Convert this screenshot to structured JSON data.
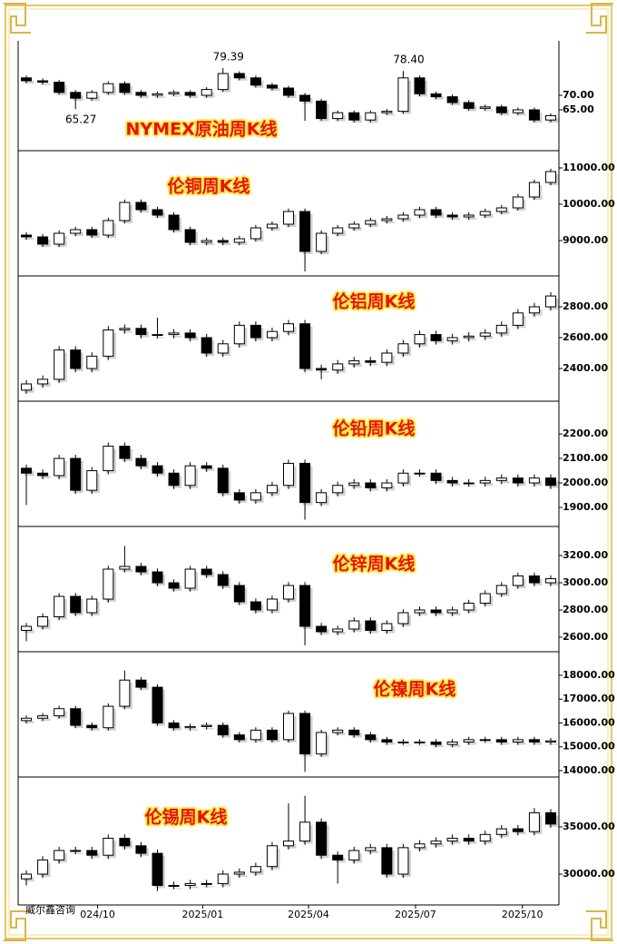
{
  "watermark": "威尔鑫咨询",
  "chart_data": [
    {
      "type": "candlestick",
      "title": "NYMEX原油周K线",
      "xlim": [
        -0.5,
        32.5
      ],
      "ylim": [
        51.25,
        88.75
      ],
      "yticks": [
        {
          "value": 65,
          "label": "65.00"
        },
        {
          "value": 70,
          "label": "70.00"
        }
      ],
      "annotations": [
        {
          "label": "65.27",
          "value": 65.27,
          "x": 3
        },
        {
          "label": "79.39",
          "value": 79.39,
          "x": 12
        },
        {
          "label": "78.40",
          "value": 78.4,
          "x": 23
        }
      ],
      "open": [
        76,
        75,
        74.5,
        71,
        69,
        71,
        74,
        71,
        70,
        70.5,
        71,
        70,
        72,
        77.5,
        76,
        73.5,
        72.5,
        70,
        68,
        62,
        64,
        61.5,
        64,
        64.5,
        76,
        70.5,
        69.5,
        67.5,
        65.5,
        66,
        64,
        65,
        61.5
      ],
      "high": [
        76.8,
        75.8,
        75.3,
        71.8,
        71.8,
        74.8,
        74.8,
        71.8,
        71.3,
        71.8,
        71.8,
        72.8,
        79.39,
        78.3,
        76.8,
        74.3,
        73.3,
        70.8,
        68.8,
        64.8,
        64.8,
        64.8,
        65.3,
        78.4,
        76.8,
        71.3,
        70.3,
        68.3,
        66.8,
        66.8,
        65.8,
        65.8,
        63.8
      ],
      "low": [
        74.2,
        73.7,
        70.2,
        65.27,
        68.2,
        70.2,
        70.2,
        69.2,
        69.2,
        69.7,
        69.2,
        69.2,
        71.2,
        75.2,
        72.7,
        71.7,
        69.2,
        61.2,
        61.2,
        61.2,
        60.7,
        60.7,
        63.2,
        63.7,
        69.7,
        68.7,
        66.7,
        64.7,
        64.7,
        63.2,
        63.2,
        60.7,
        60.7
      ],
      "close": [
        75,
        74.5,
        71,
        69,
        71,
        74,
        71,
        70,
        70.5,
        71,
        70,
        72,
        77.5,
        76,
        73.5,
        72.5,
        70,
        68,
        62,
        64,
        61.5,
        64,
        64.5,
        76,
        70.5,
        69.5,
        67.5,
        65.5,
        66,
        64,
        65,
        61.5,
        63
      ]
    },
    {
      "type": "candlestick",
      "title": "伦铜周K线",
      "xlim": [
        -0.5,
        32.5
      ],
      "ylim": [
        8050,
        11450
      ],
      "yticks": [
        {
          "value": 9000,
          "label": "9000.00"
        },
        {
          "value": 10000,
          "label": "10000.00"
        },
        {
          "value": 11000,
          "label": "11000.00"
        }
      ],
      "open": [
        9150,
        9100,
        8900,
        9200,
        9300,
        9150,
        9550,
        10050,
        9850,
        9700,
        9300,
        8950,
        9000,
        8950,
        9050,
        9350,
        9450,
        9800,
        8700,
        9200,
        9350,
        9450,
        9550,
        9600,
        9700,
        9850,
        9700,
        9650,
        9700,
        9800,
        9900,
        10200,
        10600
      ],
      "high": [
        9230,
        9180,
        9280,
        9380,
        9380,
        9630,
        10130,
        10130,
        9930,
        9780,
        9380,
        9080,
        9080,
        9130,
        9430,
        9530,
        9880,
        9880,
        9280,
        9430,
        9530,
        9630,
        9680,
        9780,
        9930,
        9930,
        9780,
        9780,
        9880,
        9980,
        10280,
        10680,
        10980
      ],
      "low": [
        9020,
        8820,
        8820,
        9120,
        9070,
        9070,
        9470,
        9770,
        9620,
        9220,
        8870,
        8870,
        8870,
        8870,
        8970,
        9270,
        9370,
        8150,
        8620,
        9120,
        9270,
        9370,
        9470,
        9520,
        9620,
        9620,
        9570,
        9570,
        9620,
        9720,
        9820,
        10120,
        10520
      ],
      "close": [
        9100,
        8900,
        9200,
        9300,
        9150,
        9550,
        10050,
        9850,
        9700,
        9300,
        8950,
        9000,
        8950,
        9050,
        9350,
        9450,
        9800,
        8700,
        9200,
        9350,
        9450,
        9550,
        9600,
        9700,
        9850,
        9700,
        9650,
        9700,
        9800,
        9900,
        10200,
        10600,
        10900
      ]
    },
    {
      "type": "candlestick",
      "title": "伦铝周K线",
      "xlim": [
        -0.5,
        32.5
      ],
      "ylim": [
        2194,
        2994
      ],
      "yticks": [
        {
          "value": 2400,
          "label": "2400.00"
        },
        {
          "value": 2600,
          "label": "2600.00"
        },
        {
          "value": 2800,
          "label": "2800.00"
        }
      ],
      "open": [
        2260,
        2300,
        2330,
        2520,
        2400,
        2480,
        2650,
        2660,
        2620,
        2620,
        2630,
        2600,
        2500,
        2560,
        2680,
        2600,
        2640,
        2690,
        2400,
        2390,
        2430,
        2450,
        2440,
        2500,
        2560,
        2620,
        2580,
        2600,
        2610,
        2630,
        2680,
        2760,
        2800
      ],
      "high": [
        2325,
        2355,
        2545,
        2545,
        2505,
        2675,
        2685,
        2685,
        2730,
        2655,
        2655,
        2625,
        2585,
        2705,
        2705,
        2665,
        2715,
        2715,
        2425,
        2455,
        2475,
        2475,
        2525,
        2585,
        2645,
        2645,
        2625,
        2635,
        2655,
        2705,
        2785,
        2825,
        2895
      ],
      "low": [
        2235,
        2275,
        2305,
        2375,
        2375,
        2455,
        2625,
        2595,
        2595,
        2595,
        2575,
        2475,
        2475,
        2535,
        2575,
        2575,
        2615,
        2375,
        2330,
        2365,
        2405,
        2415,
        2415,
        2475,
        2535,
        2555,
        2555,
        2575,
        2585,
        2605,
        2655,
        2735,
        2775
      ],
      "close": [
        2300,
        2330,
        2520,
        2400,
        2480,
        2650,
        2660,
        2620,
        2620,
        2630,
        2600,
        2500,
        2560,
        2680,
        2600,
        2640,
        2690,
        2400,
        2390,
        2430,
        2450,
        2440,
        2500,
        2560,
        2620,
        2580,
        2600,
        2610,
        2630,
        2680,
        2760,
        2800,
        2870
      ]
    },
    {
      "type": "candlestick",
      "title": "伦铅周K线",
      "xlim": [
        -0.5,
        32.5
      ],
      "ylim": [
        1826,
        2330
      ],
      "yticks": [
        {
          "value": 1900,
          "label": "1900.00"
        },
        {
          "value": 2000,
          "label": "2000.00"
        },
        {
          "value": 2100,
          "label": "2100.00"
        },
        {
          "value": 2200,
          "label": "2200.00"
        }
      ],
      "open": [
        2060,
        2040,
        2030,
        2100,
        1970,
        2050,
        2150,
        2100,
        2070,
        2040,
        1990,
        2070,
        2060,
        1960,
        1930,
        1960,
        1990,
        2080,
        1920,
        1960,
        1990,
        2000,
        1980,
        2000,
        2040,
        2040,
        2010,
        2000,
        2000,
        2010,
        2020,
        2000,
        2020
      ],
      "high": [
        2075,
        2055,
        2115,
        2115,
        2065,
        2165,
        2165,
        2115,
        2085,
        2055,
        2085,
        2085,
        2075,
        1975,
        1975,
        2005,
        2095,
        2095,
        1975,
        2005,
        2015,
        2015,
        2015,
        2055,
        2055,
        2055,
        2025,
        2015,
        2025,
        2035,
        2035,
        2035,
        2035
      ],
      "low": [
        1910,
        2015,
        2015,
        1955,
        1955,
        2035,
        2085,
        2055,
        2025,
        1975,
        1975,
        2045,
        1945,
        1915,
        1915,
        1945,
        1975,
        1850,
        1905,
        1945,
        1975,
        1965,
        1965,
        1985,
        2025,
        1995,
        1985,
        1985,
        1985,
        1995,
        1985,
        1985,
        1975
      ],
      "close": [
        2040,
        2030,
        2100,
        1970,
        2050,
        2150,
        2100,
        2070,
        2040,
        1990,
        2070,
        2060,
        1960,
        1930,
        1960,
        1990,
        2080,
        1920,
        1960,
        1990,
        2000,
        1980,
        2000,
        2040,
        2040,
        2010,
        2000,
        2000,
        2010,
        2020,
        2000,
        2020,
        1990
      ]
    },
    {
      "type": "candlestick",
      "title": "伦锌周K线",
      "xlim": [
        -0.5,
        32.5
      ],
      "ylim": [
        2500,
        3407
      ],
      "yticks": [
        {
          "value": 2600,
          "label": "2600.00"
        },
        {
          "value": 2800,
          "label": "2800.00"
        },
        {
          "value": 3000,
          "label": "3000.00"
        },
        {
          "value": 3200,
          "label": "3200.00"
        }
      ],
      "open": [
        2650,
        2680,
        2750,
        2900,
        2780,
        2880,
        3100,
        3120,
        3080,
        3000,
        2960,
        3100,
        3060,
        2980,
        2860,
        2800,
        2880,
        2980,
        2680,
        2640,
        2660,
        2720,
        2650,
        2700,
        2780,
        2800,
        2780,
        2800,
        2850,
        2920,
        2980,
        3050,
        3000
      ],
      "high": [
        2705,
        2775,
        2925,
        2925,
        2905,
        3125,
        3270,
        3145,
        3105,
        3025,
        3125,
        3125,
        3085,
        3005,
        2885,
        2905,
        3005,
        3005,
        2705,
        2685,
        2745,
        2745,
        2725,
        2805,
        2825,
        2825,
        2825,
        2875,
        2945,
        3005,
        3075,
        3075,
        3055
      ],
      "low": [
        2570,
        2655,
        2725,
        2755,
        2755,
        2855,
        3075,
        3055,
        2975,
        2935,
        2935,
        3035,
        2955,
        2835,
        2775,
        2775,
        2855,
        2540,
        2615,
        2615,
        2635,
        2625,
        2625,
        2675,
        2755,
        2755,
        2755,
        2775,
        2825,
        2895,
        2955,
        2975,
        2975
      ],
      "close": [
        2680,
        2750,
        2900,
        2780,
        2880,
        3100,
        3120,
        3080,
        3000,
        2960,
        3100,
        3060,
        2980,
        2860,
        2800,
        2880,
        2980,
        2680,
        2640,
        2660,
        2720,
        2650,
        2700,
        2780,
        2800,
        2780,
        2800,
        2850,
        2920,
        2980,
        3050,
        3000,
        3030
      ]
    },
    {
      "type": "candlestick",
      "title": "伦镍周K线",
      "xlim": [
        -0.5,
        32.5
      ],
      "ylim": [
        13771,
        18952
      ],
      "yticks": [
        {
          "value": 14000,
          "label": "14000.00"
        },
        {
          "value": 15000,
          "label": "15000.00"
        },
        {
          "value": 16000,
          "label": "16000.00"
        },
        {
          "value": 17000,
          "label": "17000.00"
        },
        {
          "value": 18000,
          "label": "18000.00"
        }
      ],
      "open": [
        16100,
        16200,
        16300,
        16600,
        15900,
        15800,
        16700,
        17800,
        17500,
        16000,
        15800,
        15850,
        15900,
        15500,
        15300,
        15700,
        15300,
        16400,
        14700,
        15600,
        15700,
        15500,
        15300,
        15200,
        15200,
        15200,
        15100,
        15200,
        15300,
        15300,
        15200,
        15300,
        15200
      ],
      "high": [
        16320,
        16420,
        16720,
        16720,
        16020,
        16820,
        18200,
        17920,
        17620,
        16120,
        15970,
        16020,
        16020,
        15620,
        15820,
        15820,
        16520,
        16520,
        15720,
        15820,
        15820,
        15620,
        15420,
        15320,
        15320,
        15320,
        15320,
        15420,
        15420,
        15420,
        15420,
        15420,
        15370
      ],
      "low": [
        15980,
        16080,
        16180,
        15780,
        15680,
        15680,
        16580,
        17380,
        15880,
        15680,
        15680,
        15730,
        15380,
        15180,
        15180,
        15180,
        15180,
        13950,
        14580,
        15480,
        15380,
        15180,
        15080,
        15080,
        15080,
        14980,
        14980,
        15080,
        15180,
        15080,
        15080,
        15080,
        15080
      ],
      "close": [
        16200,
        16300,
        16600,
        15900,
        15800,
        16700,
        17800,
        17500,
        16000,
        15800,
        15850,
        15900,
        15500,
        15300,
        15700,
        15300,
        16400,
        14700,
        15600,
        15700,
        15500,
        15300,
        15200,
        15200,
        15200,
        15100,
        15200,
        15300,
        15300,
        15200,
        15300,
        15200,
        15250
      ]
    },
    {
      "type": "candlestick",
      "title": "伦锡周K线",
      "xlim": [
        -0.5,
        32.5
      ],
      "ylim": [
        26731,
        40192
      ],
      "yticks": [
        {
          "value": 30000,
          "label": "30000.00"
        },
        {
          "value": 35000,
          "label": "35000.00"
        }
      ],
      "xticks": [
        {
          "value": 4.35,
          "label": "024/10"
        },
        {
          "value": 10.76,
          "label": "2025/01"
        },
        {
          "value": 17.22,
          "label": "2025/04"
        },
        {
          "value": 23.75,
          "label": "2025/07"
        },
        {
          "value": 30.27,
          "label": "2025/10"
        }
      ],
      "open": [
        29500,
        30000,
        31500,
        32500,
        32500,
        32000,
        33800,
        33000,
        32200,
        28800,
        28800,
        29000,
        29000,
        30000,
        30200,
        30800,
        33000,
        33500,
        35500,
        32000,
        31500,
        32500,
        32800,
        30000,
        32800,
        33200,
        33500,
        33800,
        33500,
        34200,
        34800,
        34500,
        36500
      ],
      "high": [
        30400,
        31900,
        32900,
        32900,
        32900,
        34200,
        34200,
        33400,
        32600,
        29200,
        29400,
        29400,
        30400,
        30600,
        31200,
        33400,
        37500,
        38300,
        35900,
        32400,
        32900,
        33200,
        33200,
        33200,
        33600,
        33900,
        34200,
        34200,
        34600,
        35200,
        35200,
        37000,
        36900
      ],
      "low": [
        28800,
        29600,
        31100,
        32100,
        31600,
        31600,
        32600,
        31800,
        28200,
        28400,
        28400,
        28600,
        28600,
        29600,
        29800,
        30400,
        32600,
        33100,
        31600,
        29000,
        31100,
        32100,
        29600,
        29600,
        32400,
        32800,
        33100,
        33100,
        33100,
        33800,
        34100,
        34100,
        34900
      ],
      "close": [
        30000,
        31500,
        32500,
        32500,
        32000,
        33800,
        33000,
        32200,
        28800,
        28800,
        29000,
        29000,
        30000,
        30200,
        30800,
        33000,
        33500,
        35500,
        32000,
        31500,
        32500,
        32800,
        30000,
        32800,
        33200,
        33500,
        33800,
        33500,
        34200,
        34800,
        34500,
        36500,
        35300
      ]
    }
  ]
}
